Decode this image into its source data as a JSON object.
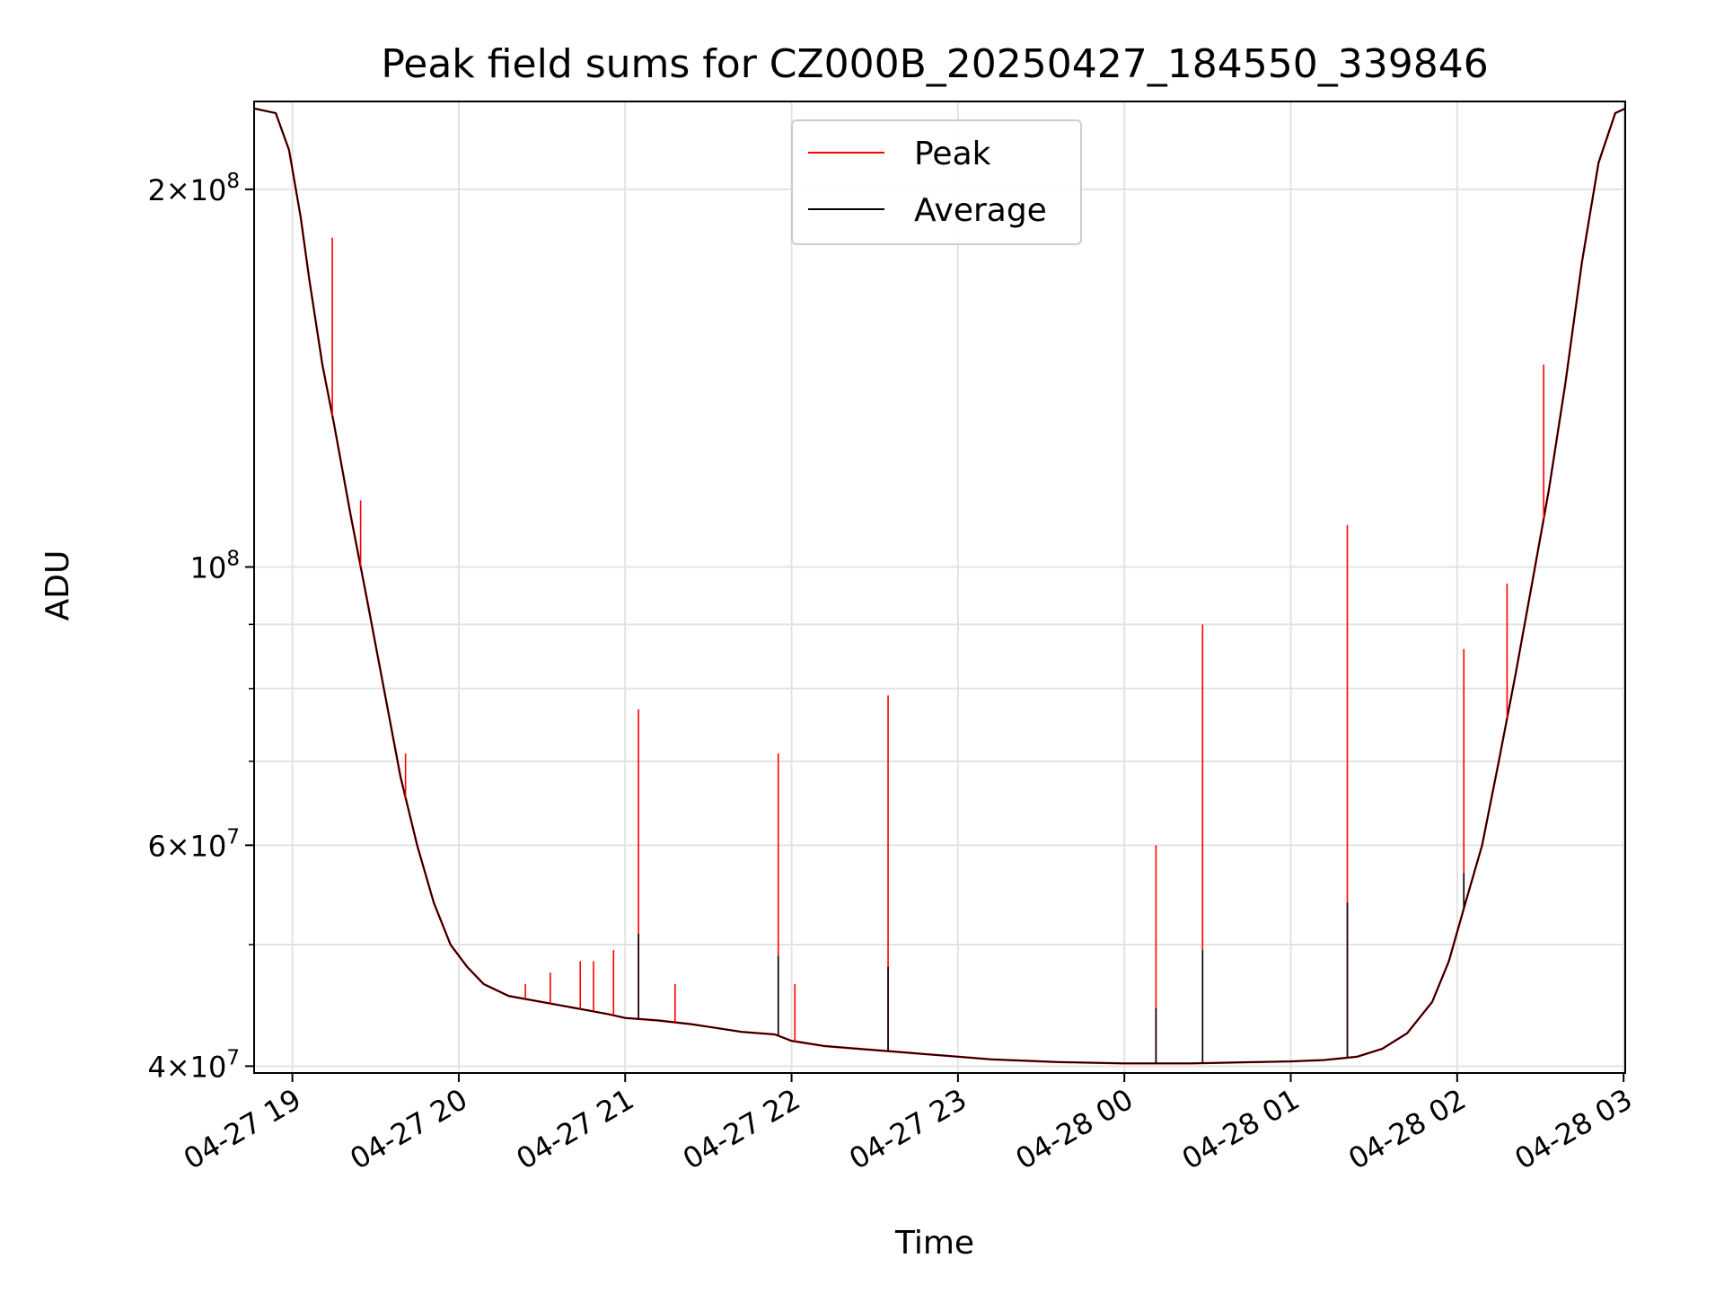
{
  "chart_data": {
    "type": "line",
    "title": "Peak field sums for CZ000B_20250427_184550_339846",
    "xlabel": "Time",
    "ylabel": "ADU",
    "x_unit": "hours since 2025-04-27 00:00",
    "xlim": [
      18.77,
      27.01
    ],
    "ylim": [
      39500000,
      235000000
    ],
    "yscale": "log",
    "grid": true,
    "legend_position": "top-center",
    "x_ticks": [
      {
        "value": 19,
        "label": "04-27 19"
      },
      {
        "value": 20,
        "label": "04-27 20"
      },
      {
        "value": 21,
        "label": "04-27 21"
      },
      {
        "value": 22,
        "label": "04-27 22"
      },
      {
        "value": 23,
        "label": "04-27 23"
      },
      {
        "value": 24,
        "label": "04-28 00"
      },
      {
        "value": 25,
        "label": "04-28 01"
      },
      {
        "value": 26,
        "label": "04-28 02"
      },
      {
        "value": 27,
        "label": "04-28 03"
      }
    ],
    "y_major_ticks": [
      {
        "value": 40000000,
        "mantissa": "4",
        "exp": "7"
      },
      {
        "value": 60000000,
        "mantissa": "6",
        "exp": "7"
      },
      {
        "value": 100000000,
        "mantissa": "",
        "exp": "8"
      },
      {
        "value": 200000000,
        "mantissa": "2",
        "exp": "8"
      }
    ],
    "y_minor_ticks": [
      50000000,
      70000000,
      80000000,
      90000000
    ],
    "baseline": [
      [
        18.77,
        232000000
      ],
      [
        18.9,
        230000000
      ],
      [
        18.98,
        215000000
      ],
      [
        19.05,
        190000000
      ],
      [
        19.1,
        170000000
      ],
      [
        19.18,
        145000000
      ],
      [
        19.25,
        130000000
      ],
      [
        19.35,
        110000000
      ],
      [
        19.45,
        94000000
      ],
      [
        19.55,
        80000000
      ],
      [
        19.65,
        68000000
      ],
      [
        19.75,
        60000000
      ],
      [
        19.85,
        54000000
      ],
      [
        19.95,
        50000000
      ],
      [
        20.05,
        48000000
      ],
      [
        20.15,
        46500000
      ],
      [
        20.3,
        45500000
      ],
      [
        20.5,
        45000000
      ],
      [
        20.7,
        44500000
      ],
      [
        20.9,
        44000000
      ],
      [
        21.0,
        43700000
      ],
      [
        21.2,
        43500000
      ],
      [
        21.4,
        43200000
      ],
      [
        21.5,
        43000000
      ],
      [
        21.7,
        42600000
      ],
      [
        21.9,
        42400000
      ],
      [
        22.0,
        41900000
      ],
      [
        22.2,
        41500000
      ],
      [
        22.4,
        41300000
      ],
      [
        22.6,
        41100000
      ],
      [
        22.8,
        40900000
      ],
      [
        23.0,
        40700000
      ],
      [
        23.2,
        40500000
      ],
      [
        23.4,
        40400000
      ],
      [
        23.6,
        40300000
      ],
      [
        23.8,
        40250000
      ],
      [
        24.0,
        40200000
      ],
      [
        24.2,
        40200000
      ],
      [
        24.4,
        40200000
      ],
      [
        24.6,
        40250000
      ],
      [
        24.8,
        40300000
      ],
      [
        25.0,
        40350000
      ],
      [
        25.2,
        40450000
      ],
      [
        25.4,
        40700000
      ],
      [
        25.55,
        41300000
      ],
      [
        25.7,
        42500000
      ],
      [
        25.85,
        45000000
      ],
      [
        25.95,
        48500000
      ],
      [
        26.05,
        54000000
      ],
      [
        26.15,
        60000000
      ],
      [
        26.25,
        70000000
      ],
      [
        26.35,
        82000000
      ],
      [
        26.45,
        97000000
      ],
      [
        26.55,
        115000000
      ],
      [
        26.65,
        140000000
      ],
      [
        26.75,
        175000000
      ],
      [
        26.85,
        210000000
      ],
      [
        26.95,
        230000000
      ],
      [
        27.01,
        232000000
      ]
    ],
    "peak_spikes": [
      {
        "x": 19.24,
        "y": 183000000
      },
      {
        "x": 19.41,
        "y": 113000000
      },
      {
        "x": 19.68,
        "y": 71000000
      },
      {
        "x": 20.4,
        "y": 46500000
      },
      {
        "x": 20.55,
        "y": 47500000
      },
      {
        "x": 20.73,
        "y": 48500000
      },
      {
        "x": 20.81,
        "y": 48500000
      },
      {
        "x": 20.93,
        "y": 49500000
      },
      {
        "x": 21.08,
        "y": 77000000
      },
      {
        "x": 21.3,
        "y": 46500000
      },
      {
        "x": 21.92,
        "y": 71000000
      },
      {
        "x": 22.02,
        "y": 46500000
      },
      {
        "x": 22.58,
        "y": 79000000
      },
      {
        "x": 24.19,
        "y": 60000000
      },
      {
        "x": 24.47,
        "y": 90000000
      },
      {
        "x": 25.34,
        "y": 108000000
      },
      {
        "x": 26.04,
        "y": 86000000
      },
      {
        "x": 26.3,
        "y": 97000000
      },
      {
        "x": 26.52,
        "y": 145000000
      }
    ],
    "average_spikes": [
      {
        "x": 21.08,
        "y": 51000000
      },
      {
        "x": 21.92,
        "y": 49000000
      },
      {
        "x": 22.58,
        "y": 48000000
      },
      {
        "x": 24.19,
        "y": 44500000
      },
      {
        "x": 24.47,
        "y": 49500000
      },
      {
        "x": 25.34,
        "y": 54000000
      },
      {
        "x": 26.04,
        "y": 57000000
      }
    ],
    "series": [
      {
        "name": "Peak",
        "color": "#ff0000"
      },
      {
        "name": "Average",
        "color": "#000000"
      }
    ]
  }
}
